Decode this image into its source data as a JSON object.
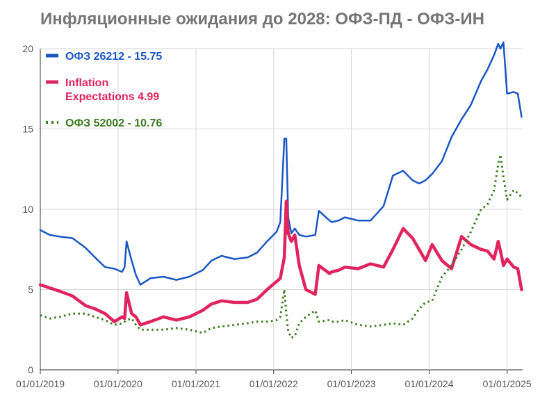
{
  "chart_data": {
    "type": "line",
    "title": "Инфляционные ожидания до 2028: ОФЗ-ПД - ОФЗ-ИН",
    "xlabel": "",
    "ylabel": "",
    "x_ticks": [
      "01/01/2019",
      "01/01/2020",
      "01/01/2021",
      "01/01/2022",
      "01/01/2023",
      "01/01/2024",
      "01/01/2025"
    ],
    "y_ticks": [
      0,
      5,
      10,
      15,
      20
    ],
    "xlim": [
      "2019-01-01",
      "2025-03-15"
    ],
    "ylim": [
      0,
      20
    ],
    "grid": true,
    "legend_position": "top-left",
    "series": [
      {
        "name": "ОФЗ 26212 - 15.75",
        "color": "#1a56c4",
        "dash": "solid",
        "x": [
          "2019-01-01",
          "2019-02-15",
          "2019-04-01",
          "2019-06-01",
          "2019-08-01",
          "2019-09-15",
          "2019-11-01",
          "2019-12-15",
          "2020-01-20",
          "2020-02-01",
          "2020-02-10",
          "2020-03-05",
          "2020-03-25",
          "2020-04-15",
          "2020-06-01",
          "2020-08-01",
          "2020-10-01",
          "2020-12-01",
          "2021-02-01",
          "2021-03-15",
          "2021-05-01",
          "2021-07-01",
          "2021-09-01",
          "2021-10-15",
          "2021-12-01",
          "2022-01-15",
          "2022-02-01",
          "2022-02-20",
          "2022-03-01",
          "2022-03-10",
          "2022-03-25",
          "2022-04-10",
          "2022-05-01",
          "2022-06-01",
          "2022-07-15",
          "2022-08-01",
          "2022-09-20",
          "2022-10-01",
          "2022-11-01",
          "2022-12-01",
          "2023-02-01",
          "2023-04-01",
          "2023-06-01",
          "2023-07-15",
          "2023-09-01",
          "2023-10-15",
          "2023-11-15",
          "2023-12-15",
          "2024-01-15",
          "2024-03-01",
          "2024-04-15",
          "2024-06-01",
          "2024-07-15",
          "2024-09-01",
          "2024-10-01",
          "2024-11-01",
          "2024-11-20",
          "2024-12-01",
          "2024-12-15",
          "2025-01-01",
          "2025-02-01",
          "2025-02-20",
          "2025-03-10"
        ],
        "values": [
          8.7,
          8.4,
          8.3,
          8.2,
          7.6,
          7.0,
          6.4,
          6.3,
          6.1,
          6.4,
          8.0,
          6.8,
          5.9,
          5.3,
          5.7,
          5.8,
          5.6,
          5.8,
          6.2,
          6.8,
          7.1,
          6.9,
          7.0,
          7.3,
          8.0,
          8.6,
          9.2,
          14.4,
          14.4,
          9.5,
          8.5,
          8.8,
          8.4,
          8.3,
          8.4,
          9.9,
          9.3,
          9.2,
          9.3,
          9.5,
          9.3,
          9.3,
          10.2,
          12.1,
          12.4,
          11.8,
          11.6,
          11.8,
          12.2,
          13.0,
          14.5,
          15.6,
          16.5,
          18.0,
          18.7,
          19.6,
          20.3,
          20.0,
          20.4,
          17.2,
          17.3,
          17.2,
          15.75
        ]
      },
      {
        "name": "Inflation Expectations 4.99",
        "color": "#e0245e",
        "dash": "solid",
        "x": [
          "2019-01-01",
          "2019-02-15",
          "2019-04-01",
          "2019-06-01",
          "2019-08-01",
          "2019-09-15",
          "2019-11-01",
          "2019-12-15",
          "2020-01-20",
          "2020-02-01",
          "2020-02-10",
          "2020-03-05",
          "2020-03-25",
          "2020-04-15",
          "2020-06-01",
          "2020-08-01",
          "2020-10-01",
          "2020-12-01",
          "2021-02-01",
          "2021-03-15",
          "2021-05-01",
          "2021-07-01",
          "2021-09-01",
          "2021-10-15",
          "2021-12-01",
          "2022-01-15",
          "2022-02-01",
          "2022-02-20",
          "2022-03-01",
          "2022-03-10",
          "2022-03-25",
          "2022-04-10",
          "2022-05-01",
          "2022-06-01",
          "2022-07-15",
          "2022-08-01",
          "2022-09-20",
          "2022-10-01",
          "2022-11-01",
          "2022-12-01",
          "2023-02-01",
          "2023-04-01",
          "2023-06-01",
          "2023-07-15",
          "2023-09-01",
          "2023-10-15",
          "2023-11-15",
          "2023-12-15",
          "2024-01-15",
          "2024-03-01",
          "2024-04-15",
          "2024-06-01",
          "2024-07-15",
          "2024-09-01",
          "2024-10-01",
          "2024-11-01",
          "2024-11-20",
          "2024-12-01",
          "2024-12-15",
          "2025-01-01",
          "2025-02-01",
          "2025-02-20",
          "2025-03-10"
        ],
        "values": [
          5.3,
          5.1,
          4.9,
          4.6,
          4.0,
          3.8,
          3.5,
          3.0,
          3.3,
          3.2,
          4.8,
          3.5,
          3.3,
          2.8,
          3.0,
          3.3,
          3.1,
          3.3,
          3.7,
          4.1,
          4.3,
          4.2,
          4.2,
          4.4,
          5.0,
          5.5,
          5.7,
          7.0,
          10.5,
          8.5,
          8.0,
          8.4,
          6.5,
          5.0,
          4.7,
          6.5,
          6.0,
          6.1,
          6.2,
          6.4,
          6.3,
          6.6,
          6.4,
          7.5,
          8.8,
          8.2,
          7.5,
          6.8,
          7.8,
          6.8,
          6.3,
          8.3,
          7.8,
          7.5,
          7.4,
          6.9,
          8.0,
          7.4,
          6.5,
          6.9,
          6.4,
          6.3,
          4.99
        ]
      },
      {
        "name": "ОФЗ 52002 - 10.76",
        "color": "#3b7a1e",
        "dash": "dotted",
        "x": [
          "2019-01-01",
          "2019-02-15",
          "2019-04-01",
          "2019-06-01",
          "2019-08-01",
          "2019-09-15",
          "2019-11-01",
          "2019-12-15",
          "2020-01-20",
          "2020-02-01",
          "2020-02-10",
          "2020-03-05",
          "2020-03-25",
          "2020-04-15",
          "2020-06-01",
          "2020-08-01",
          "2020-10-01",
          "2020-12-01",
          "2021-02-01",
          "2021-03-15",
          "2021-05-01",
          "2021-07-01",
          "2021-09-01",
          "2021-10-15",
          "2021-12-01",
          "2022-01-15",
          "2022-02-01",
          "2022-02-20",
          "2022-03-01",
          "2022-03-10",
          "2022-03-25",
          "2022-04-10",
          "2022-05-01",
          "2022-06-01",
          "2022-07-15",
          "2022-08-01",
          "2022-09-20",
          "2022-10-01",
          "2022-11-01",
          "2022-12-01",
          "2023-02-01",
          "2023-04-01",
          "2023-06-01",
          "2023-07-15",
          "2023-09-01",
          "2023-10-15",
          "2023-11-15",
          "2023-12-15",
          "2024-01-15",
          "2024-03-01",
          "2024-04-15",
          "2024-06-01",
          "2024-07-15",
          "2024-09-01",
          "2024-10-01",
          "2024-11-01",
          "2024-11-20",
          "2024-12-01",
          "2024-12-15",
          "2025-01-01",
          "2025-02-01",
          "2025-02-20",
          "2025-03-10"
        ],
        "values": [
          3.4,
          3.2,
          3.3,
          3.5,
          3.5,
          3.3,
          3.1,
          2.8,
          2.9,
          3.0,
          3.1,
          3.2,
          2.8,
          2.5,
          2.5,
          2.5,
          2.6,
          2.5,
          2.3,
          2.6,
          2.7,
          2.8,
          2.9,
          3.0,
          3.0,
          3.1,
          3.3,
          5.0,
          3.5,
          2.4,
          2.0,
          2.1,
          2.9,
          3.3,
          3.7,
          3.0,
          3.1,
          3.0,
          3.0,
          3.1,
          2.8,
          2.7,
          2.8,
          2.9,
          2.8,
          3.2,
          3.8,
          4.2,
          4.3,
          5.8,
          6.5,
          7.5,
          8.6,
          10.0,
          10.3,
          11.2,
          12.8,
          13.4,
          12.0,
          10.6,
          11.2,
          11.0,
          10.76
        ]
      }
    ]
  }
}
